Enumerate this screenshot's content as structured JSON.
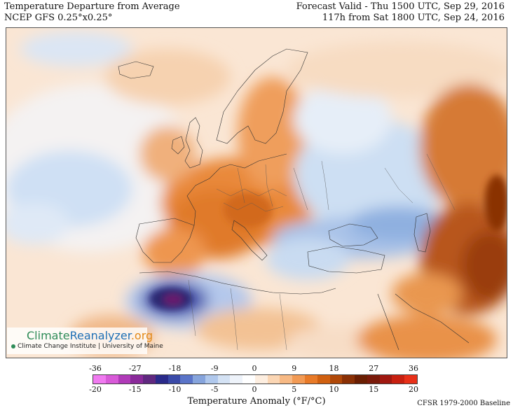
{
  "header": {
    "title_line1": "Temperature Departure from Average",
    "title_line2": "NCEP GFS 0.25°x0.25°",
    "valid_line1": "Forecast Valid - Thu 1500 UTC, Sep 29, 2016",
    "valid_line2": "117h from Sat 1800 UTC, Sep 24, 2016"
  },
  "logo": {
    "part1": "Climate",
    "part2": "Reanalyzer",
    "part3": ".org",
    "subtitle": "Climate Change Institute | University of Maine"
  },
  "colorbar": {
    "fahrenheit_ticks": [
      "-36",
      "-27",
      "-18",
      "-9",
      "0",
      "9",
      "18",
      "27",
      "36"
    ],
    "celsius_ticks": [
      "-20",
      "-15",
      "-10",
      "-5",
      "0",
      "5",
      "10",
      "15",
      "20"
    ],
    "label": "Temperature Anomaly (°F/°C)",
    "baseline": "CFSR 1979-2000 Baseline",
    "colors": [
      "#f07af0",
      "#d85ad8",
      "#b03ab8",
      "#8a2a9a",
      "#602880",
      "#2a2a8a",
      "#3a4aa8",
      "#5a74c8",
      "#86a4dc",
      "#b0c8ec",
      "#d4e2f4",
      "#eef3fa",
      "#ffffff",
      "#fdeee0",
      "#fbd6b4",
      "#f7b984",
      "#f29a54",
      "#e87a28",
      "#d06010",
      "#b04808",
      "#8a3005",
      "#6a1e02",
      "#7a1a0a",
      "#a01810",
      "#c82010",
      "#e83018"
    ]
  },
  "map": {
    "region": "Europe, North Africa, Middle East"
  }
}
